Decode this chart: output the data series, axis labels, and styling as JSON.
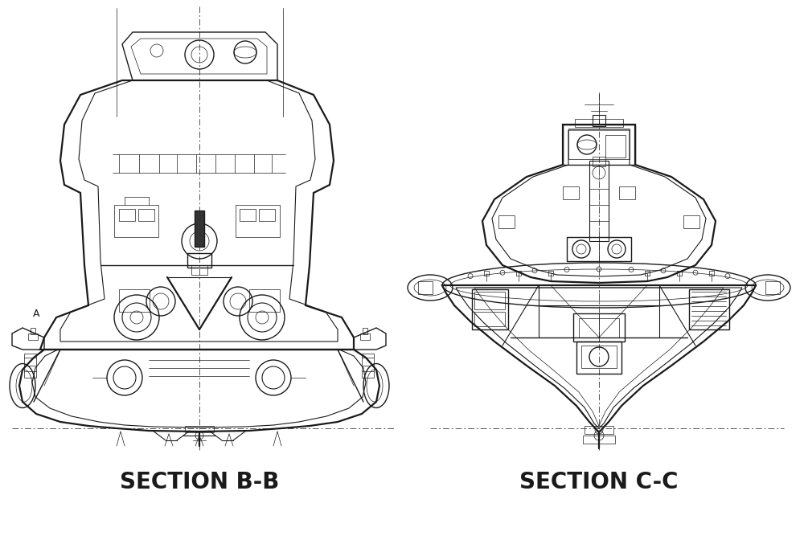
{
  "title_left": "SECTION B-B",
  "title_right": "SECTION C-C",
  "background_color": "#ffffff",
  "line_color": "#1a1a1a",
  "title_fontsize": 20,
  "label_A": "A",
  "fig_width": 10.0,
  "fig_height": 6.72
}
